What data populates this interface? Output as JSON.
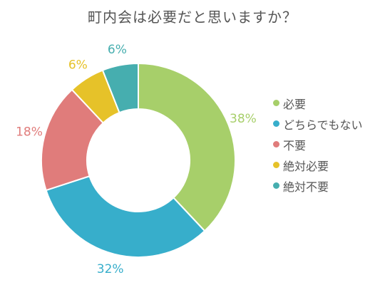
{
  "chart_data": {
    "type": "pie",
    "title": "町内会は必要だと思いますか？",
    "categories": [
      "必要",
      "どちらでもない",
      "不要",
      "絶対必要",
      "絶対不要"
    ],
    "values": [
      38,
      32,
      18,
      6,
      6
    ],
    "value_labels": [
      "38%",
      "32%",
      "18%",
      "6%",
      "6%"
    ],
    "colors": [
      "#a7cf6a",
      "#37aecb",
      "#e07c7b",
      "#e6c229",
      "#46aeaf"
    ],
    "donut": true,
    "legend_position": "right"
  }
}
